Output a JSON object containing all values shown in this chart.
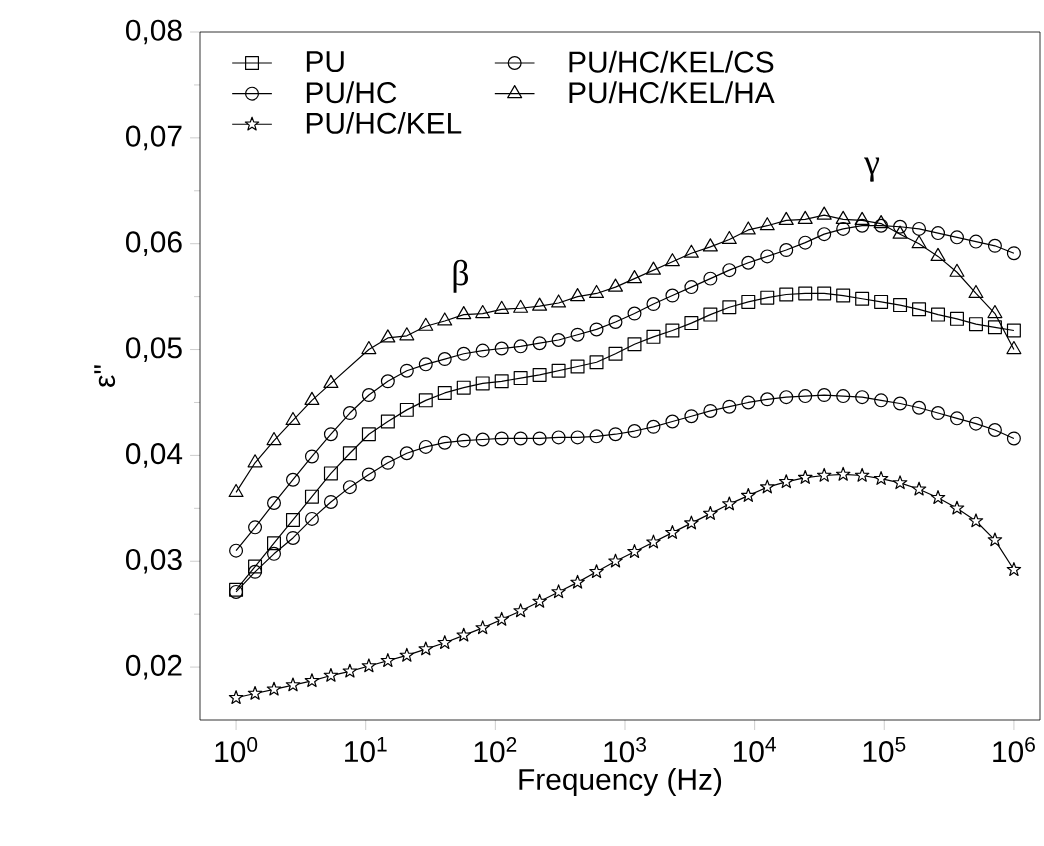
{
  "chart_data": {
    "type": "line",
    "xlabel": "Frequency (Hz)",
    "ylabel": "ε\"",
    "log": "x",
    "legend": "top left",
    "grid": false,
    "x": [
      1,
      1.401,
      1.962,
      2.748,
      3.849,
      5.391,
      7.551,
      10.58,
      14.82,
      20.76,
      29.07,
      40.72,
      57.04,
      79.9,
      111.9,
      156.7,
      219.5,
      307.5,
      430.7,
      603.3,
      845,
      1184,
      1658,
      2322,
      3253,
      4556,
      6382,
      8939,
      12520,
      17540,
      24570,
      34410,
      48200,
      67510,
      94540,
      132400,
      185500,
      259800,
      363900,
      509700,
      714000,
      1000000
    ],
    "xlim": [
      0.527,
      1590000
    ],
    "xticks": [
      {
        "value": 1,
        "label": "10$^{0}$"
      },
      {
        "value": 10,
        "label": "10$^{1}$"
      },
      {
        "value": 100,
        "label": "10$^{2}$"
      },
      {
        "value": 1000,
        "label": "10$^{3}$"
      },
      {
        "value": 10000,
        "label": "10$^{4}$"
      },
      {
        "value": 100000,
        "label": "10$^{5}$"
      },
      {
        "value": 1000000,
        "label": "10$^{6}$"
      }
    ],
    "ylim": [
      0.015,
      0.08
    ],
    "yticks": [
      {
        "value": 0.02,
        "label": "0,02"
      },
      {
        "value": 0.03,
        "label": "0,03"
      },
      {
        "value": 0.04,
        "label": "0,04"
      },
      {
        "value": 0.05,
        "label": "0,05"
      },
      {
        "value": 0.06,
        "label": "0,06"
      },
      {
        "value": 0.07,
        "label": "0,07"
      },
      {
        "value": 0.08,
        "label": "0,08"
      }
    ],
    "line_style": "solid",
    "series": [
      {
        "name": "PU",
        "color": "#000000",
        "marker": "square",
        "values": [
          0.0273,
          0.0295,
          0.0317,
          0.0339,
          0.0361,
          0.0383,
          0.0402,
          0.042,
          0.0432,
          0.0443,
          0.0452,
          0.0459,
          0.0464,
          0.0468,
          0.047,
          0.0473,
          0.0476,
          0.048,
          0.0484,
          0.0488,
          0.0496,
          0.0505,
          0.0512,
          0.0518,
          0.0525,
          0.0533,
          0.054,
          0.0545,
          0.0549,
          0.0552,
          0.0553,
          0.0553,
          0.0551,
          0.0548,
          0.0545,
          0.0542,
          0.0538,
          0.0533,
          0.0529,
          0.0524,
          0.0521,
          0.0518
        ]
      },
      {
        "name": "PU/HC/KEL/CS",
        "color": "#000000",
        "marker": "circle",
        "values": [
          0.031,
          0.0332,
          0.0355,
          0.0377,
          0.0399,
          0.042,
          0.044,
          0.0457,
          0.047,
          0.048,
          0.0486,
          0.0491,
          0.0496,
          0.0499,
          0.0501,
          0.0503,
          0.0506,
          0.0509,
          0.0514,
          0.0519,
          0.0526,
          0.0534,
          0.0543,
          0.0551,
          0.0559,
          0.0567,
          0.0575,
          0.0582,
          0.0588,
          0.0594,
          0.0601,
          0.0609,
          0.0614,
          0.0617,
          0.0617,
          0.0616,
          0.0614,
          0.061,
          0.0606,
          0.0602,
          0.0598,
          0.0591
        ]
      },
      {
        "name": "PU/HC",
        "color": "#000000",
        "marker": "circle",
        "values": [
          0.0271,
          0.029,
          0.0307,
          0.0322,
          0.034,
          0.0356,
          0.037,
          0.0382,
          0.0393,
          0.0402,
          0.0408,
          0.0412,
          0.0414,
          0.0415,
          0.0416,
          0.0416,
          0.0416,
          0.0417,
          0.0417,
          0.0418,
          0.042,
          0.0423,
          0.0427,
          0.0432,
          0.0437,
          0.0442,
          0.0446,
          0.045,
          0.0453,
          0.0455,
          0.0456,
          0.0457,
          0.0456,
          0.0455,
          0.0452,
          0.0449,
          0.0445,
          0.044,
          0.0435,
          0.043,
          0.0424,
          0.0416
        ]
      },
      {
        "name": "PU/HC/KEL/HA",
        "color": "#000000",
        "marker": "triangle",
        "values": [
          0.0365,
          0.0393,
          0.0414,
          0.0433,
          0.0452,
          0.0468,
          null,
          0.05,
          0.0511,
          0.0513,
          0.0522,
          0.0527,
          0.0533,
          0.0534,
          0.0538,
          0.0539,
          0.0541,
          0.0544,
          0.055,
          0.0553,
          0.0559,
          0.0567,
          0.0575,
          0.0583,
          0.0591,
          0.0597,
          0.0604,
          0.0613,
          0.0617,
          0.0622,
          0.0623,
          0.0627,
          0.0623,
          0.0622,
          0.0619,
          0.0609,
          0.06,
          0.0588,
          0.0573,
          0.0553,
          0.0534,
          0.05
        ]
      },
      {
        "name": "PU/HC/KEL",
        "color": "#000000",
        "marker": "star",
        "values": [
          0.0171,
          0.0175,
          0.0179,
          0.0183,
          0.0187,
          0.0192,
          0.0196,
          0.0201,
          0.0206,
          0.0211,
          0.0217,
          0.0223,
          0.023,
          0.0237,
          0.0245,
          0.0253,
          0.0262,
          0.0271,
          0.028,
          0.029,
          0.03,
          0.0309,
          0.0318,
          0.0327,
          0.0336,
          0.0345,
          0.0354,
          0.0362,
          0.037,
          0.0375,
          0.0379,
          0.0381,
          0.0382,
          0.0381,
          0.0378,
          0.0374,
          0.0368,
          0.036,
          0.035,
          0.0338,
          0.032,
          0.0292
        ]
      }
    ],
    "annotations": [
      "β",
      "γ"
    ]
  }
}
